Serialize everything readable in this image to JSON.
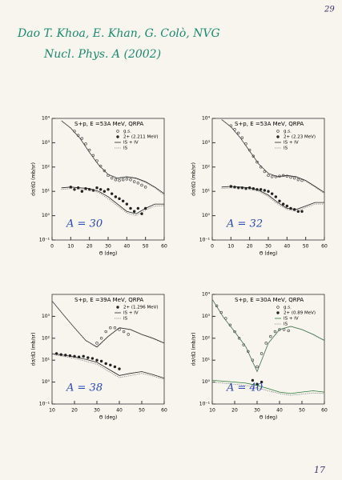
{
  "header": {
    "page_number": "29",
    "authors": "Dao T. Khoa, E. Khan, G. Colò, NVG",
    "reference": "Nucl. Phys. A (2002)"
  },
  "footer": {
    "page_number": "17"
  },
  "chart_data": [
    {
      "type": "line",
      "title": "S+p, E  =53A MeV, QRPA",
      "annotation": "A = 30",
      "xlabel": "Θ   (deg)",
      "ylabel": "dσ/dΩ (mb/sr)",
      "log_y": true,
      "xlim": [
        0,
        60
      ],
      "xticks": [
        0,
        10,
        20,
        30,
        40,
        50,
        60
      ],
      "ylim": [
        0.1,
        10000
      ],
      "yticks": [
        {
          "value": 0.1,
          "label": "10⁻¹"
        },
        {
          "value": 1,
          "label": "10⁰"
        },
        {
          "value": 10,
          "label": "10¹"
        },
        {
          "value": 100,
          "label": "10²"
        },
        {
          "value": 1000,
          "label": "10³"
        },
        {
          "value": 10000,
          "label": "10⁴"
        }
      ],
      "series": [
        {
          "name": "g.s.",
          "style": "markers",
          "marker": "open",
          "color": "#333333",
          "x": [
            12,
            14,
            16,
            18,
            20,
            22,
            24,
            26,
            28,
            30,
            32,
            34,
            36,
            38,
            40,
            42,
            44,
            46,
            48,
            50
          ],
          "values": [
            3000,
            2000,
            1500,
            900,
            500,
            300,
            180,
            110,
            70,
            45,
            35,
            30,
            28,
            30,
            32,
            30,
            25,
            22,
            18,
            15
          ]
        },
        {
          "name": "2+ (2.211 MeV)",
          "style": "markers",
          "marker": "filled",
          "color": "#222222",
          "x": [
            10,
            12,
            14,
            16,
            18,
            20,
            22,
            24,
            26,
            28,
            30,
            32,
            34,
            36,
            38,
            40,
            42,
            44,
            46,
            48,
            50
          ],
          "values": [
            15,
            12,
            14,
            10,
            13,
            12,
            11,
            14,
            12,
            10,
            12,
            8,
            6,
            5,
            4,
            3,
            2,
            1.5,
            2,
            1.2,
            2
          ]
        },
        {
          "name": "IS + IV",
          "style": "solid",
          "color": "#222222",
          "x": [
            5,
            10,
            15,
            20,
            25,
            30,
            35,
            40,
            45,
            50,
            55,
            60
          ],
          "values": [
            8000,
            4000,
            1500,
            400,
            120,
            50,
            35,
            40,
            35,
            25,
            15,
            8
          ]
        },
        {
          "name": "IS",
          "style": "dotted",
          "color": "#777777",
          "x": [
            5,
            10,
            15,
            20,
            25,
            30,
            35,
            40,
            45,
            50,
            55,
            60
          ],
          "values": [
            8000,
            4000,
            1500,
            400,
            120,
            50,
            33,
            38,
            33,
            23,
            14,
            7
          ]
        },
        {
          "style": "solid",
          "color": "#222222",
          "x": [
            5,
            10,
            15,
            20,
            25,
            30,
            35,
            40,
            45,
            50,
            55,
            60
          ],
          "values": [
            14,
            15,
            14,
            13,
            10,
            6,
            3,
            1.5,
            1.2,
            2,
            3,
            3
          ]
        },
        {
          "style": "dotted",
          "color": "#777777",
          "x": [
            5,
            10,
            15,
            20,
            25,
            30,
            35,
            40,
            45,
            50,
            55,
            60
          ],
          "values": [
            12,
            13,
            12,
            11,
            9,
            5,
            2.5,
            1.3,
            1,
            1.7,
            2.5,
            2.6
          ]
        }
      ]
    },
    {
      "type": "line",
      "title": "S+p, E  =53A MeV, QRPA",
      "annotation": "A = 32",
      "xlabel": "Θ   (deg)",
      "ylabel": "dσ/dΩ (mb/sr)",
      "log_y": true,
      "xlim": [
        0,
        60
      ],
      "xticks": [
        0,
        10,
        20,
        30,
        40,
        50,
        60
      ],
      "ylim": [
        0.1,
        10000
      ],
      "yticks": [
        {
          "value": 0.1,
          "label": "10⁻¹"
        },
        {
          "value": 1,
          "label": "10⁰"
        },
        {
          "value": 10,
          "label": "10¹"
        },
        {
          "value": 100,
          "label": "10²"
        },
        {
          "value": 1000,
          "label": "10³"
        },
        {
          "value": 10000,
          "label": "10⁴"
        }
      ],
      "series": [
        {
          "name": "g.s.",
          "style": "markers",
          "marker": "open",
          "color": "#333333",
          "x": [
            10,
            12,
            14,
            16,
            18,
            20,
            22,
            24,
            26,
            28,
            30,
            32,
            34,
            36,
            38,
            40,
            42,
            44,
            46,
            48
          ],
          "values": [
            5000,
            3500,
            2500,
            1600,
            900,
            500,
            280,
            160,
            100,
            65,
            45,
            40,
            40,
            42,
            45,
            42,
            38,
            35,
            30,
            28
          ]
        },
        {
          "name": "2+ (2.23 MeV)",
          "style": "markers",
          "marker": "filled",
          "color": "#222222",
          "x": [
            10,
            12,
            14,
            16,
            18,
            20,
            22,
            24,
            26,
            28,
            30,
            32,
            34,
            36,
            38,
            40,
            42,
            44,
            46,
            48
          ],
          "values": [
            16,
            15,
            14,
            14,
            13,
            14,
            13,
            12,
            12,
            11,
            10,
            8,
            6,
            4,
            3,
            2.5,
            2,
            1.8,
            1.5,
            1.5
          ]
        },
        {
          "name": "IS + IV",
          "style": "solid",
          "color": "#222222",
          "x": [
            5,
            10,
            15,
            20,
            25,
            30,
            35,
            40,
            45,
            50,
            55,
            60
          ],
          "values": [
            9000,
            4500,
            1600,
            450,
            130,
            55,
            40,
            45,
            40,
            28,
            16,
            9
          ]
        },
        {
          "name": "IS",
          "style": "dotted",
          "color": "#777777",
          "x": [
            5,
            10,
            15,
            20,
            25,
            30,
            35,
            40,
            45,
            50,
            55,
            60
          ],
          "values": [
            9000,
            4500,
            1600,
            450,
            130,
            55,
            38,
            43,
            38,
            26,
            15,
            8
          ]
        },
        {
          "style": "solid",
          "color": "#222222",
          "x": [
            5,
            10,
            15,
            20,
            25,
            30,
            35,
            40,
            45,
            50,
            55,
            60
          ],
          "values": [
            15,
            16,
            15,
            14,
            11,
            7,
            3.5,
            2,
            1.8,
            2.5,
            3.5,
            3.5
          ]
        },
        {
          "style": "dotted",
          "color": "#777777",
          "x": [
            5,
            10,
            15,
            20,
            25,
            30,
            35,
            40,
            45,
            50,
            55,
            60
          ],
          "values": [
            13,
            14,
            13,
            12,
            10,
            6,
            3,
            1.8,
            1.5,
            2.2,
            3,
            3
          ]
        }
      ]
    },
    {
      "type": "line",
      "title": "S+p, E  =39A MeV, QRPA",
      "annotation": "A = 38",
      "xlabel": "Θ   (deg)",
      "ylabel": "dσ/dΩ (mb/sr)",
      "log_y": true,
      "xlim": [
        10,
        60
      ],
      "xticks": [
        10,
        20,
        30,
        40,
        50,
        60
      ],
      "ylim": [
        0.1,
        10000
      ],
      "yticks": [
        {
          "value": 0.1,
          "label": "10⁻¹"
        },
        {
          "value": 1,
          "label": "10⁰"
        },
        {
          "value": 10,
          "label": "10¹"
        },
        {
          "value": 100,
          "label": "10²"
        },
        {
          "value": 1000,
          "label": "10³"
        }
      ],
      "series": [
        {
          "style": "markers",
          "marker": "open",
          "color": "#333333",
          "x": [
            30,
            32,
            34,
            36,
            38,
            40,
            42,
            44
          ],
          "values": [
            60,
            100,
            200,
            300,
            300,
            250,
            200,
            150
          ]
        },
        {
          "name": "2+ (1.296 MeV)",
          "style": "markers",
          "marker": "filled",
          "color": "#222222",
          "x": [
            12,
            14,
            16,
            18,
            20,
            22,
            24,
            26,
            28,
            30,
            32,
            34,
            36,
            38,
            40
          ],
          "values": [
            20,
            18,
            17,
            16,
            15,
            14,
            15,
            13,
            12,
            10,
            9,
            7,
            6,
            5,
            4
          ]
        },
        {
          "name": "IS + IV",
          "style": "solid",
          "color": "#222222",
          "x": [
            10,
            15,
            20,
            25,
            30,
            35,
            40,
            45,
            50,
            55,
            60
          ],
          "values": [
            5000,
            1200,
            300,
            80,
            40,
            120,
            300,
            250,
            150,
            100,
            60
          ]
        },
        {
          "name": "IS",
          "style": "dotted",
          "color": "#777777",
          "x": [
            10,
            15,
            20,
            25,
            30,
            35,
            40,
            45,
            50,
            55,
            60
          ],
          "values": [
            5000,
            1200,
            300,
            80,
            38,
            115,
            290,
            240,
            145,
            95,
            58
          ]
        },
        {
          "style": "solid",
          "color": "#222222",
          "x": [
            10,
            15,
            20,
            25,
            30,
            35,
            40,
            45,
            50,
            55,
            60
          ],
          "values": [
            20,
            17,
            14,
            11,
            8,
            4,
            2,
            2.5,
            3,
            2.2,
            1.5
          ]
        },
        {
          "style": "dotted",
          "color": "#777777",
          "x": [
            10,
            15,
            20,
            25,
            30,
            35,
            40,
            45,
            50,
            55,
            60
          ],
          "values": [
            18,
            15,
            12,
            9,
            6.5,
            3.2,
            1.6,
            2,
            2.5,
            1.9,
            1.3
          ]
        }
      ]
    },
    {
      "type": "line",
      "title": "S+p, E  =30A MeV, QRPA",
      "annotation": "A = 40",
      "xlabel": "Θ   (deg)",
      "ylabel": "dσ/dΩ (mb/sr)",
      "log_y": true,
      "xlim": [
        10,
        60
      ],
      "xticks": [
        10,
        20,
        30,
        40,
        50,
        60
      ],
      "ylim": [
        0.1,
        10000
      ],
      "yticks": [
        {
          "value": 0.1,
          "label": "10⁻¹"
        },
        {
          "value": 1,
          "label": "10⁰"
        },
        {
          "value": 10,
          "label": "10¹"
        },
        {
          "value": 100,
          "label": "10²"
        },
        {
          "value": 1000,
          "label": "10³"
        },
        {
          "value": 10000,
          "label": "10⁴"
        }
      ],
      "series": [
        {
          "name": "g.s.",
          "style": "markers",
          "marker": "open",
          "color": "#333333",
          "x": [
            12,
            14,
            16,
            18,
            20,
            22,
            24,
            26,
            28,
            30,
            32,
            34,
            36,
            38,
            40,
            42,
            44
          ],
          "values": [
            3000,
            1500,
            800,
            400,
            200,
            100,
            50,
            25,
            10,
            5,
            20,
            60,
            120,
            200,
            250,
            250,
            220
          ]
        },
        {
          "name": "2+ (0.89 MeV)",
          "style": "markers",
          "marker": "filled",
          "color": "#222222",
          "x": [
            28,
            30,
            32
          ],
          "values": [
            1.2,
            0.8,
            1
          ]
        },
        {
          "name": "IS + IV",
          "style": "solid",
          "color": "#2a7a3a",
          "x": [
            10,
            15,
            20,
            25,
            30,
            35,
            40,
            45,
            50,
            55,
            60
          ],
          "values": [
            6000,
            900,
            200,
            40,
            3,
            60,
            250,
            350,
            250,
            150,
            80
          ]
        },
        {
          "name": "IS",
          "style": "dotted",
          "color": "#777777",
          "x": [
            10,
            15,
            20,
            25,
            30,
            35,
            40,
            45,
            50,
            55,
            60
          ],
          "values": [
            6000,
            900,
            200,
            40,
            3,
            58,
            245,
            340,
            245,
            145,
            78
          ]
        },
        {
          "style": "solid",
          "color": "#2a7a3a",
          "x": [
            10,
            15,
            20,
            25,
            30,
            35,
            40,
            45,
            50,
            55,
            60
          ],
          "values": [
            1.2,
            1.1,
            1,
            0.9,
            0.7,
            0.5,
            0.35,
            0.3,
            0.35,
            0.4,
            0.35
          ]
        },
        {
          "style": "dotted",
          "color": "#777777",
          "x": [
            10,
            15,
            20,
            25,
            30,
            35,
            40,
            45,
            50,
            55,
            60
          ],
          "values": [
            1,
            0.9,
            0.8,
            0.7,
            0.55,
            0.4,
            0.3,
            0.25,
            0.28,
            0.32,
            0.3
          ]
        }
      ]
    }
  ]
}
